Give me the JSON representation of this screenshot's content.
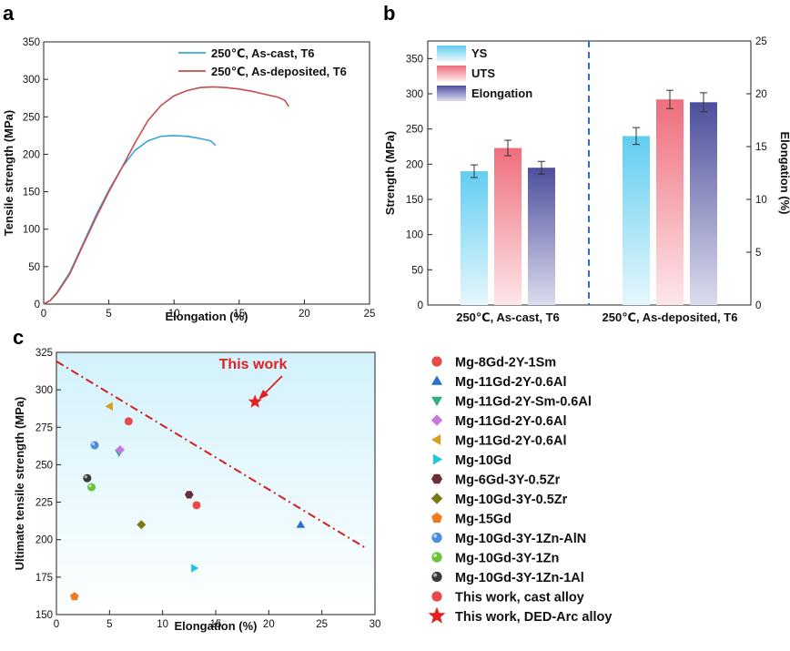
{
  "chart_data": [
    {
      "panel": "a",
      "type": "line",
      "xlabel": "Elongation (%)",
      "ylabel": "Tensile strength (MPa)",
      "xlim": [
        0,
        25
      ],
      "ylim": [
        0,
        350
      ],
      "xticks": [
        0,
        5,
        10,
        15,
        20,
        25
      ],
      "yticks": [
        0,
        50,
        100,
        150,
        200,
        250,
        300,
        350
      ],
      "legend": "top-right",
      "series": [
        {
          "name": "250℃, As-cast, T6",
          "color": "#3aa6d9",
          "x": [
            0,
            0.5,
            1,
            2,
            3,
            4,
            5,
            6,
            7,
            8,
            9,
            10,
            11,
            12,
            12.8,
            13.2
          ],
          "y": [
            0,
            5,
            15,
            42,
            80,
            118,
            152,
            182,
            205,
            218,
            224,
            225,
            224,
            221,
            218,
            212
          ]
        },
        {
          "name": "250℃, As-deposited, T6",
          "color": "#c94c4c",
          "x": [
            0,
            0.5,
            1,
            2,
            3,
            4,
            5,
            6,
            7,
            8,
            9,
            10,
            11,
            12,
            13,
            14,
            15,
            16,
            17,
            18,
            18.5,
            18.8
          ],
          "y": [
            0,
            5,
            14,
            40,
            78,
            115,
            150,
            182,
            215,
            245,
            265,
            278,
            285,
            289,
            290,
            289,
            287,
            284,
            280,
            276,
            272,
            264
          ]
        }
      ]
    },
    {
      "panel": "b",
      "type": "bar",
      "categories": [
        "250℃, As-cast, T6",
        "250℃, As-deposited, T6"
      ],
      "ylabel": "Strength (MPa)",
      "y2label": "Elongation (%)",
      "ylim": [
        0,
        375
      ],
      "y2lim": [
        0,
        25
      ],
      "yticks": [
        0,
        50,
        100,
        150,
        200,
        250,
        300,
        350
      ],
      "y2ticks": [
        0,
        5,
        10,
        15,
        20,
        25
      ],
      "legend": "top-left",
      "series": [
        {
          "name": "YS",
          "axis": "left",
          "color_top": "#62cdf0",
          "color_bottom": "#e6f7fd",
          "values": [
            190,
            240
          ],
          "errors": [
            9,
            12
          ]
        },
        {
          "name": "UTS",
          "axis": "left",
          "color_top": "#ef6d7c",
          "color_bottom": "#fde7ea",
          "values": [
            223,
            292
          ],
          "errors": [
            11,
            13
          ]
        },
        {
          "name": "Elongation",
          "axis": "right",
          "color_top": "#4d4f9c",
          "color_bottom": "#dcdcee",
          "values": [
            13.0,
            19.2
          ],
          "errors": [
            0.6,
            0.9
          ]
        }
      ]
    },
    {
      "panel": "c",
      "type": "scatter",
      "xlabel": "Elongation (%)",
      "ylabel": "Ultimate tensile strength (MPa)",
      "xlim": [
        0,
        30
      ],
      "ylim": [
        150,
        325
      ],
      "xticks": [
        0,
        5,
        10,
        15,
        20,
        25,
        30
      ],
      "yticks": [
        150,
        175,
        200,
        225,
        250,
        275,
        300,
        325
      ],
      "annotation": "This work",
      "trend_line": {
        "x": [
          0,
          29
        ],
        "y": [
          319,
          195
        ],
        "color": "#d42020"
      },
      "series": [
        {
          "name": "Mg-8Gd-2Y-1Sm",
          "marker": "circle",
          "color": "#e84a4a",
          "x": [
            6.8
          ],
          "y": [
            279
          ]
        },
        {
          "name": "Mg-11Gd-2Y-0.6Al",
          "marker": "triangle-up",
          "color": "#2b6fce",
          "x": [
            23.0
          ],
          "y": [
            210
          ]
        },
        {
          "name": "Mg-11Gd-2Y-Sm-0.6Al",
          "marker": "triangle-down",
          "color": "#2fb07a",
          "x": [
            5.9
          ],
          "y": [
            258
          ]
        },
        {
          "name": "Mg-11Gd-2Y-0.6Al",
          "marker": "diamond",
          "color": "#c678e0",
          "x": [
            6.0
          ],
          "y": [
            260
          ]
        },
        {
          "name": "Mg-11Gd-2Y-0.6Al",
          "marker": "triangle-left",
          "color": "#d9a020",
          "x": [
            5.0
          ],
          "y": [
            289
          ]
        },
        {
          "name": "Mg-10Gd",
          "marker": "triangle-right",
          "color": "#22c8d6",
          "x": [
            13.0
          ],
          "y": [
            181
          ]
        },
        {
          "name": "Mg-6Gd-3Y-0.5Zr",
          "marker": "hexagon",
          "color": "#6b2e38",
          "x": [
            12.5
          ],
          "y": [
            230
          ]
        },
        {
          "name": "Mg-10Gd-3Y-0.5Zr",
          "marker": "diamond",
          "color": "#7a7a16",
          "x": [
            8.0
          ],
          "y": [
            210
          ]
        },
        {
          "name": "Mg-15Gd",
          "marker": "pentagon",
          "color": "#f07a20",
          "x": [
            1.7
          ],
          "y": [
            162
          ]
        },
        {
          "name": "Mg-10Gd-3Y-1Zn-AlN",
          "marker": "sphere",
          "color": "#4a8fd8",
          "x": [
            3.6
          ],
          "y": [
            263
          ]
        },
        {
          "name": "Mg-10Gd-3Y-1Zn",
          "marker": "sphere",
          "color": "#6cc23a",
          "x": [
            3.3
          ],
          "y": [
            235
          ]
        },
        {
          "name": "Mg-10Gd-3Y-1Zn-1Al",
          "marker": "sphere",
          "color": "#3a3a3a",
          "x": [
            2.9
          ],
          "y": [
            241
          ]
        },
        {
          "name": "This work, cast alloy",
          "marker": "circle",
          "color": "#e84a4a",
          "x": [
            13.2
          ],
          "y": [
            223
          ]
        },
        {
          "name": "This work, DED-Arc alloy",
          "marker": "star",
          "color": "#e81c1c",
          "x": [
            18.7
          ],
          "y": [
            292
          ]
        }
      ]
    }
  ],
  "panels": {
    "a": "a",
    "b": "b",
    "c": "c"
  }
}
